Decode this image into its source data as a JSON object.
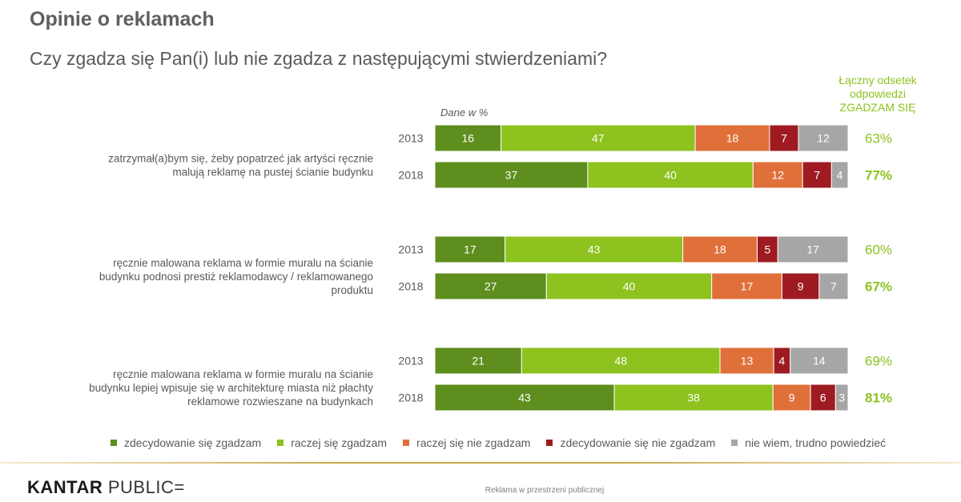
{
  "title": "Opinie o reklamach",
  "subtitle": "Czy zgadza się Pan(i) lub nie zgadza z następującymi stwierdzeniami?",
  "total_header": [
    "Łączny odsetek",
    "odpowiedzi",
    "ZGADZAM SIĘ"
  ],
  "unit_note": "Dane w %",
  "footer": {
    "logo_word1": "KANTAR",
    "logo_word2": "PUBLIC=",
    "caption": "Reklama w przestrzeni publicznej"
  },
  "chart_data": {
    "type": "bar",
    "orientation": "horizontal",
    "stacked": true,
    "percent_stacked": true,
    "legend_position": "bottom",
    "series": [
      {
        "name": "zdecydowanie się zgadzam",
        "color": "#5e8e1e"
      },
      {
        "name": "raczej się zgadzam",
        "color": "#8dc21f"
      },
      {
        "name": "raczej się nie zgadzam",
        "color": "#e0703a"
      },
      {
        "name": "zdecydowanie się nie zgadzam",
        "color": "#9e1b22"
      },
      {
        "name": "nie wiem, trudno powiedzieć",
        "color": "#a6a6a6"
      }
    ],
    "statements": [
      {
        "label": [
          "zatrzymał(a)bym się, żeby popatrzeć jak artyści ręcznie",
          "malują reklamę na pustej ścianie budynku"
        ],
        "rows": [
          {
            "year": "2013",
            "values": [
              16,
              47,
              18,
              7,
              12
            ],
            "total": "63%",
            "highlight": false
          },
          {
            "year": "2018",
            "values": [
              37,
              40,
              12,
              7,
              4
            ],
            "total": "77%",
            "highlight": true
          }
        ]
      },
      {
        "label": [
          "ręcznie malowana reklama w formie muralu na ścianie",
          "budynku  podnosi prestiż reklamodawcy / reklamowanego",
          "produktu"
        ],
        "rows": [
          {
            "year": "2013",
            "values": [
              17,
              43,
              18,
              5,
              17
            ],
            "total": "60%",
            "highlight": false
          },
          {
            "year": "2018",
            "values": [
              27,
              40,
              17,
              9,
              7
            ],
            "total": "67%",
            "highlight": true
          }
        ]
      },
      {
        "label": [
          "ręcznie malowana reklama w formie muralu na ścianie",
          "budynku lepiej wpisuje się w architekturę miasta niż płachty",
          "reklamowe rozwieszane na budynkach"
        ],
        "rows": [
          {
            "year": "2013",
            "values": [
              21,
              48,
              13,
              4,
              14
            ],
            "total": "69%",
            "highlight": false
          },
          {
            "year": "2018",
            "values": [
              43,
              38,
              9,
              6,
              3
            ],
            "total": "81%",
            "highlight": true
          }
        ]
      }
    ]
  }
}
